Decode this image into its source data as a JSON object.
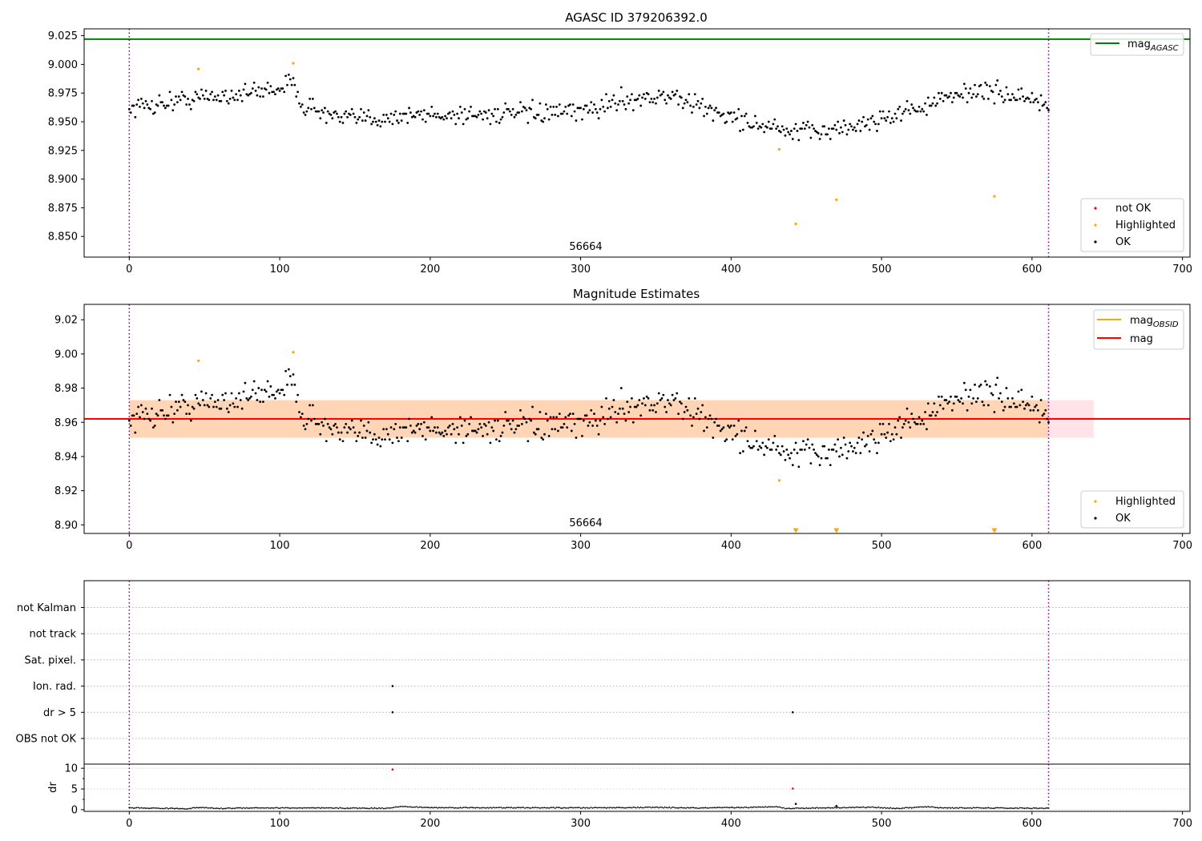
{
  "chart_data": [
    {
      "type": "scatter",
      "title": "AGASC ID 379206392.0",
      "xlim": [
        -30,
        705
      ],
      "ylim": [
        8.832,
        9.031
      ],
      "x_ticks": [
        "0",
        "100",
        "200",
        "300",
        "400",
        "500",
        "600",
        "700"
      ],
      "y_ticks": [
        "8.850",
        "8.875",
        "8.900",
        "8.925",
        "8.950",
        "8.975",
        "9.000",
        "9.025"
      ],
      "obsid_label": "56664",
      "obsid_bounds": [
        0,
        611
      ],
      "agasc_mag": 9.022,
      "series": [
        {
          "name": "not OK",
          "color": "#ff0000",
          "points": []
        },
        {
          "name": "Highlighted",
          "color": "#ffa500",
          "points": [
            [
              46,
              8.996
            ],
            [
              109,
              9.001
            ],
            [
              432,
              8.926
            ],
            [
              443,
              8.861
            ],
            [
              470,
              8.882
            ],
            [
              575,
              8.885
            ]
          ]
        },
        {
          "name": "OK",
          "color": "#000000",
          "trend": [
            [
              0,
              8.962
            ],
            [
              40,
              8.97
            ],
            [
              80,
              8.975
            ],
            [
              110,
              8.983
            ],
            [
              115,
              8.965
            ],
            [
              140,
              8.952
            ],
            [
              200,
              8.956
            ],
            [
              300,
              8.958
            ],
            [
              330,
              8.97
            ],
            [
              360,
              8.972
            ],
            [
              400,
              8.954
            ],
            [
              440,
              8.94
            ],
            [
              480,
              8.945
            ],
            [
              510,
              8.957
            ],
            [
              540,
              8.968
            ],
            [
              560,
              8.978
            ],
            [
              600,
              8.97
            ],
            [
              611,
              8.962
            ]
          ],
          "scatter_sd": 0.006
        }
      ],
      "legend_top": [
        {
          "label": "mag",
          "sub": "AGASC",
          "color": "#008000"
        }
      ],
      "legend_bottom": [
        "not OK",
        "Highlighted",
        "OK"
      ]
    },
    {
      "type": "scatter",
      "title": "Magnitude Estimates",
      "xlim": [
        -30,
        705
      ],
      "ylim": [
        8.895,
        9.029
      ],
      "x_ticks": [
        "0",
        "100",
        "200",
        "300",
        "400",
        "500",
        "600",
        "700"
      ],
      "y_ticks": [
        "8.90",
        "8.92",
        "8.94",
        "8.96",
        "8.98",
        "9.00",
        "9.02"
      ],
      "obsid_label": "56664",
      "obsid_bounds": [
        0,
        611
      ],
      "mag": 8.962,
      "mag_obsid": 8.962,
      "mag_band": [
        8.951,
        8.973
      ],
      "band_end": 641,
      "series": [
        {
          "name": "Highlighted",
          "color": "#ffa500",
          "points": [
            [
              46,
              8.996
            ],
            [
              109,
              9.001
            ],
            [
              432,
              8.926
            ]
          ],
          "below_range_x": [
            443,
            470,
            575
          ]
        },
        {
          "name": "OK",
          "color": "#000000",
          "same_as_panel": 0
        }
      ],
      "legend_top": [
        {
          "label": "mag",
          "sub": "OBSID",
          "color": "#ffa500"
        },
        {
          "label": "mag",
          "sub": "",
          "color": "#ff0000"
        }
      ],
      "legend_bottom": [
        "Highlighted",
        "OK"
      ]
    },
    {
      "type": "scatter",
      "title": "",
      "xlim": [
        -30,
        705
      ],
      "x_ticks": [
        "0",
        "100",
        "200",
        "300",
        "400",
        "500",
        "600",
        "700"
      ],
      "flag_rows": [
        "OBS not OK",
        "dr > 5",
        "Ion. rad.",
        "Sat. pixel.",
        "not track",
        "not Kalman"
      ],
      "flag_points": [
        {
          "row": "Ion. rad.",
          "x": 175
        },
        {
          "row": "dr > 5",
          "x": 175
        },
        {
          "row": "dr > 5",
          "x": 441
        }
      ],
      "dr": {
        "ylabel": "dr",
        "y_ticks": [
          "0",
          "5",
          "10"
        ],
        "ylim": [
          -0.4,
          11
        ],
        "baseline": [
          [
            0,
            0.45
          ],
          [
            40,
            0.25
          ],
          [
            45,
            0.55
          ],
          [
            60,
            0.3
          ],
          [
            80,
            0.45
          ],
          [
            120,
            0.4
          ],
          [
            170,
            0.35
          ],
          [
            180,
            0.75
          ],
          [
            200,
            0.5
          ],
          [
            300,
            0.45
          ],
          [
            350,
            0.55
          ],
          [
            380,
            0.4
          ],
          [
            420,
            0.6
          ],
          [
            430,
            0.8
          ],
          [
            436,
            0.3
          ],
          [
            470,
            0.5
          ],
          [
            495,
            0.6
          ],
          [
            510,
            0.3
          ],
          [
            530,
            0.7
          ],
          [
            540,
            0.45
          ],
          [
            611,
            0.35
          ]
        ],
        "outliers": [
          {
            "x": 175,
            "y": 9.7,
            "color": "#ff0000"
          },
          {
            "x": 441,
            "y": 5.1,
            "color": "#ff0000"
          },
          {
            "x": 443,
            "y": 1.4,
            "color": "#000000"
          },
          {
            "x": 470,
            "y": 0.9,
            "color": "#000000"
          }
        ]
      }
    }
  ]
}
